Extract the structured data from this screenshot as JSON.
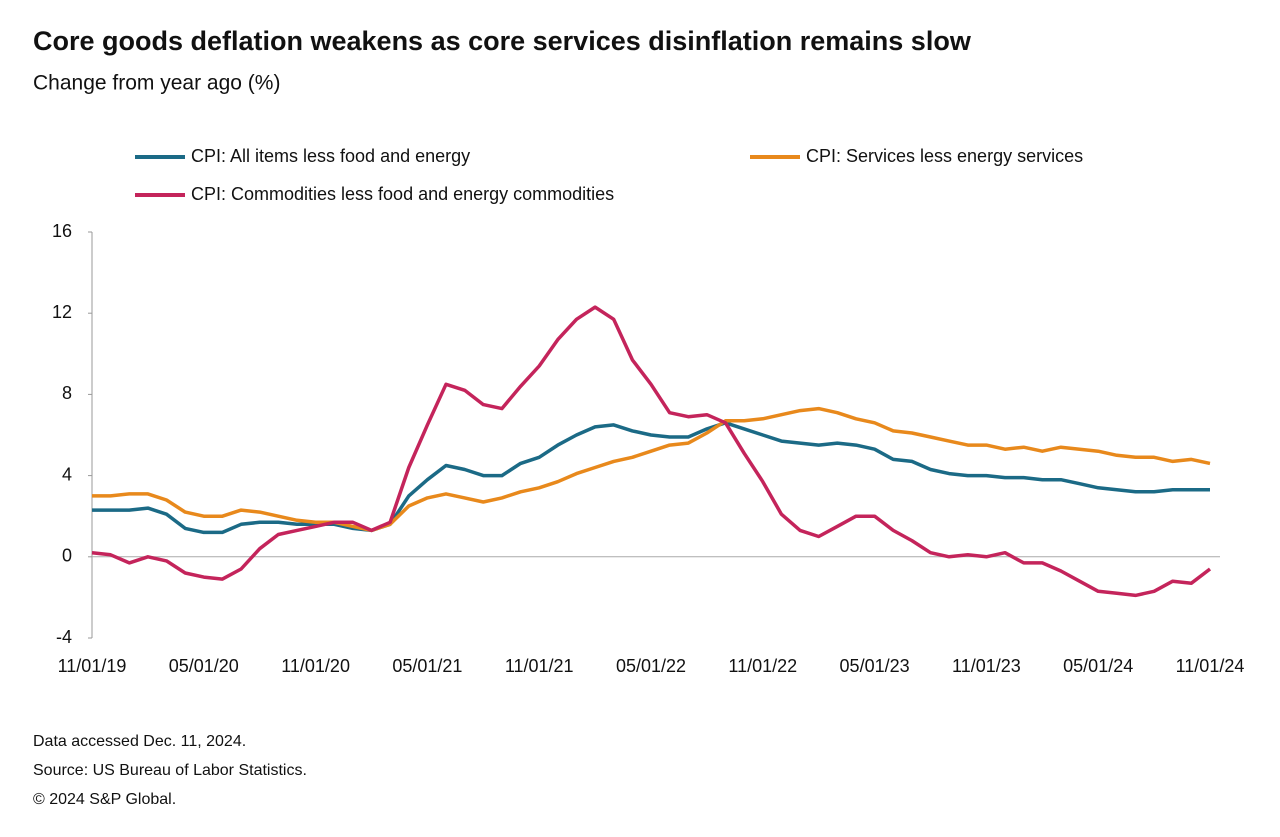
{
  "chart_data": {
    "type": "line",
    "title": "Core goods deflation weakens as core services disinflation remains slow",
    "subtitle": "Change from year ago (%)",
    "categories": [
      "11/01/19",
      null,
      null,
      null,
      null,
      null,
      "05/01/20",
      null,
      null,
      null,
      null,
      null,
      "11/01/20",
      null,
      null,
      null,
      null,
      null,
      "05/01/21",
      null,
      null,
      null,
      null,
      null,
      "11/01/21",
      null,
      null,
      null,
      null,
      null,
      "05/01/22",
      null,
      null,
      null,
      null,
      null,
      "11/01/22",
      null,
      null,
      null,
      null,
      null,
      "05/01/23",
      null,
      null,
      null,
      null,
      null,
      "11/01/23",
      null,
      null,
      null,
      null,
      null,
      "05/01/24",
      null,
      null,
      null,
      null,
      null,
      "11/01/24"
    ],
    "series": [
      {
        "name": "CPI: All items less food and energy",
        "color": "#1b6a86",
        "values": [
          2.3,
          2.3,
          2.3,
          2.4,
          2.1,
          1.4,
          1.2,
          1.2,
          1.6,
          1.7,
          1.7,
          1.6,
          1.6,
          1.6,
          1.4,
          1.3,
          1.6,
          3.0,
          3.8,
          4.5,
          4.3,
          4.0,
          4.0,
          4.6,
          4.9,
          5.5,
          6.0,
          6.4,
          6.5,
          6.2,
          6.0,
          5.9,
          5.9,
          6.3,
          6.6,
          6.3,
          6.0,
          5.7,
          5.6,
          5.5,
          5.6,
          5.5,
          5.3,
          4.8,
          4.7,
          4.3,
          4.1,
          4.0,
          4.0,
          3.9,
          3.9,
          3.8,
          3.8,
          3.6,
          3.4,
          3.3,
          3.2,
          3.2,
          3.3,
          3.3,
          3.3
        ]
      },
      {
        "name": "CPI: Services less energy services",
        "color": "#e8891c",
        "values": [
          3.0,
          3.0,
          3.1,
          3.1,
          2.8,
          2.2,
          2.0,
          2.0,
          2.3,
          2.2,
          2.0,
          1.8,
          1.7,
          1.7,
          1.5,
          1.3,
          1.6,
          2.5,
          2.9,
          3.1,
          2.9,
          2.7,
          2.9,
          3.2,
          3.4,
          3.7,
          4.1,
          4.4,
          4.7,
          4.9,
          5.2,
          5.5,
          5.6,
          6.1,
          6.7,
          6.7,
          6.8,
          7.0,
          7.2,
          7.3,
          7.1,
          6.8,
          6.6,
          6.2,
          6.1,
          5.9,
          5.7,
          5.5,
          5.5,
          5.3,
          5.4,
          5.2,
          5.4,
          5.3,
          5.2,
          5.0,
          4.9,
          4.9,
          4.7,
          4.8,
          4.6
        ]
      },
      {
        "name": "CPI: Commodities less food and energy commodities",
        "color": "#c4245b",
        "values": [
          0.2,
          0.1,
          -0.3,
          0.0,
          -0.2,
          -0.8,
          -1.0,
          -1.1,
          -0.6,
          0.4,
          1.1,
          1.3,
          1.5,
          1.7,
          1.7,
          1.3,
          1.7,
          4.4,
          6.5,
          8.5,
          8.2,
          7.5,
          7.3,
          8.4,
          9.4,
          10.7,
          11.7,
          12.3,
          11.7,
          9.7,
          8.5,
          7.1,
          6.9,
          7.0,
          6.6,
          5.1,
          3.7,
          2.1,
          1.3,
          1.0,
          1.5,
          2.0,
          2.0,
          1.3,
          0.8,
          0.2,
          0.0,
          0.1,
          0.0,
          0.2,
          -0.3,
          -0.3,
          -0.7,
          -1.2,
          -1.7,
          -1.8,
          -1.9,
          -1.7,
          -1.2,
          -1.3,
          -0.6
        ]
      }
    ],
    "ylim": [
      -4,
      16
    ],
    "yticks": [
      -4,
      0,
      4,
      8,
      12,
      16
    ],
    "notes": [
      "Data accessed Dec. 11, 2024.",
      "Source: US Bureau of Labor Statistics.",
      "© 2024 S&P Global."
    ]
  }
}
